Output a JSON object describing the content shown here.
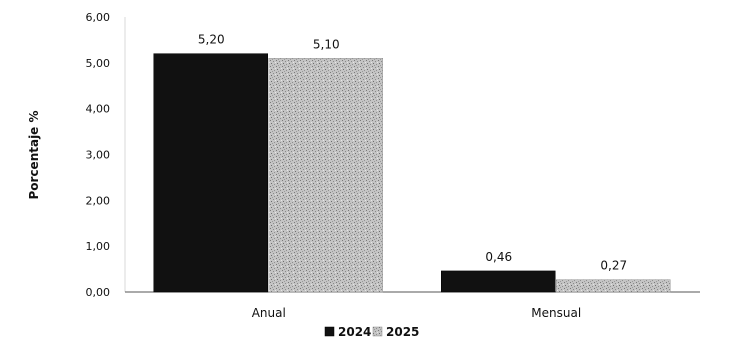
{
  "chart_data": {
    "type": "bar",
    "title": "",
    "xlabel": "",
    "ylabel": "Porcentaje %",
    "categories": [
      "Anual",
      "Mensual"
    ],
    "series": [
      {
        "name": "2024",
        "values": [
          5.2,
          0.46
        ],
        "value_labels": [
          "5,20",
          "0,46"
        ],
        "color": "#111111"
      },
      {
        "name": "2025",
        "values": [
          5.1,
          0.27
        ],
        "value_labels": [
          "5,10",
          "0,27"
        ],
        "color": "#b8b8b8"
      }
    ],
    "ylim": [
      0,
      6
    ],
    "yticks": [
      0,
      1,
      2,
      3,
      4,
      5,
      6
    ],
    "ytick_labels": [
      "0,00",
      "1,00",
      "2,00",
      "3,00",
      "4,00",
      "5,00",
      "6,00"
    ],
    "grid": false,
    "legend_position": "bottom-center"
  }
}
